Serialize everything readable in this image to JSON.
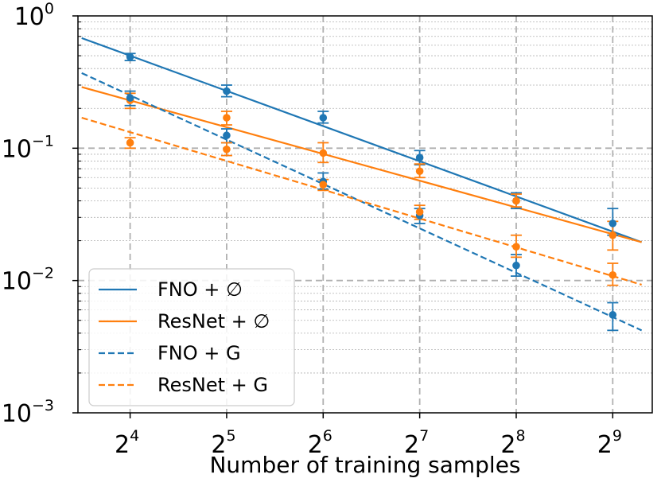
{
  "chart_data": {
    "type": "scatter",
    "xlabel": "Number of training samples",
    "ylabel": "",
    "x_scale": "log2",
    "y_scale": "log10",
    "xlim": [
      11,
      680
    ],
    "ylim": [
      0.001,
      1
    ],
    "x_ticks": [
      {
        "value": 16,
        "base": "2",
        "exp": "4"
      },
      {
        "value": 32,
        "base": "2",
        "exp": "5"
      },
      {
        "value": 64,
        "base": "2",
        "exp": "6"
      },
      {
        "value": 128,
        "base": "2",
        "exp": "7"
      },
      {
        "value": 256,
        "base": "2",
        "exp": "8"
      },
      {
        "value": 512,
        "base": "2",
        "exp": "9"
      }
    ],
    "y_ticks": [
      {
        "value": 0.001,
        "base": "10",
        "exp": "−3"
      },
      {
        "value": 0.01,
        "base": "10",
        "exp": "−2"
      },
      {
        "value": 0.1,
        "base": "10",
        "exp": "−1"
      },
      {
        "value": 1,
        "base": "10",
        "exp": "0"
      }
    ],
    "grid": true,
    "legend_position": "lower-left",
    "series": [
      {
        "name": "FNO + ∅",
        "color": "#1f77b4",
        "line_style": "solid",
        "fit": {
          "x": [
            11.3,
            630
          ],
          "y": [
            0.68,
            0.0195
          ]
        },
        "points": [
          {
            "x": 16,
            "y": 0.49,
            "lo": 0.46,
            "hi": 0.52
          },
          {
            "x": 32,
            "y": 0.27,
            "lo": 0.245,
            "hi": 0.3
          },
          {
            "x": 64,
            "y": 0.17,
            "lo": 0.155,
            "hi": 0.19
          },
          {
            "x": 128,
            "y": 0.085,
            "lo": 0.075,
            "hi": 0.096
          },
          {
            "x": 256,
            "y": 0.04,
            "lo": 0.035,
            "hi": 0.046
          },
          {
            "x": 512,
            "y": 0.027,
            "lo": 0.022,
            "hi": 0.035
          }
        ]
      },
      {
        "name": "ResNet + ∅",
        "color": "#ff7f0e",
        "line_style": "solid",
        "fit": {
          "x": [
            11.3,
            630
          ],
          "y": [
            0.29,
            0.0195
          ]
        },
        "points": [
          {
            "x": 16,
            "y": 0.23,
            "lo": 0.2,
            "hi": 0.26
          },
          {
            "x": 32,
            "y": 0.17,
            "lo": 0.15,
            "hi": 0.19
          },
          {
            "x": 64,
            "y": 0.092,
            "lo": 0.078,
            "hi": 0.11
          },
          {
            "x": 128,
            "y": 0.067,
            "lo": 0.06,
            "hi": 0.076
          },
          {
            "x": 256,
            "y": 0.04,
            "lo": 0.036,
            "hi": 0.045
          },
          {
            "x": 512,
            "y": 0.022,
            "lo": 0.017,
            "hi": 0.028
          }
        ]
      },
      {
        "name": "FNO + G",
        "color": "#1f77b4",
        "line_style": "dashed",
        "fit": {
          "x": [
            11.3,
            630
          ],
          "y": [
            0.37,
            0.0042
          ]
        },
        "points": [
          {
            "x": 16,
            "y": 0.24,
            "lo": 0.21,
            "hi": 0.27
          },
          {
            "x": 32,
            "y": 0.125,
            "lo": 0.11,
            "hi": 0.14
          },
          {
            "x": 64,
            "y": 0.056,
            "lo": 0.049,
            "hi": 0.065
          },
          {
            "x": 128,
            "y": 0.031,
            "lo": 0.027,
            "hi": 0.035
          },
          {
            "x": 256,
            "y": 0.013,
            "lo": 0.0108,
            "hi": 0.0157
          },
          {
            "x": 512,
            "y": 0.0055,
            "lo": 0.0042,
            "hi": 0.0068
          }
        ]
      },
      {
        "name": "ResNet + G",
        "color": "#ff7f0e",
        "line_style": "dashed",
        "fit": {
          "x": [
            11.3,
            630
          ],
          "y": [
            0.17,
            0.0093
          ]
        },
        "points": [
          {
            "x": 16,
            "y": 0.11,
            "lo": 0.1,
            "hi": 0.12
          },
          {
            "x": 32,
            "y": 0.098,
            "lo": 0.088,
            "hi": 0.11
          },
          {
            "x": 64,
            "y": 0.053,
            "lo": 0.048,
            "hi": 0.058
          },
          {
            "x": 128,
            "y": 0.033,
            "lo": 0.029,
            "hi": 0.037
          },
          {
            "x": 256,
            "y": 0.018,
            "lo": 0.015,
            "hi": 0.022
          },
          {
            "x": 512,
            "y": 0.011,
            "lo": 0.0092,
            "hi": 0.0135
          }
        ]
      }
    ]
  }
}
